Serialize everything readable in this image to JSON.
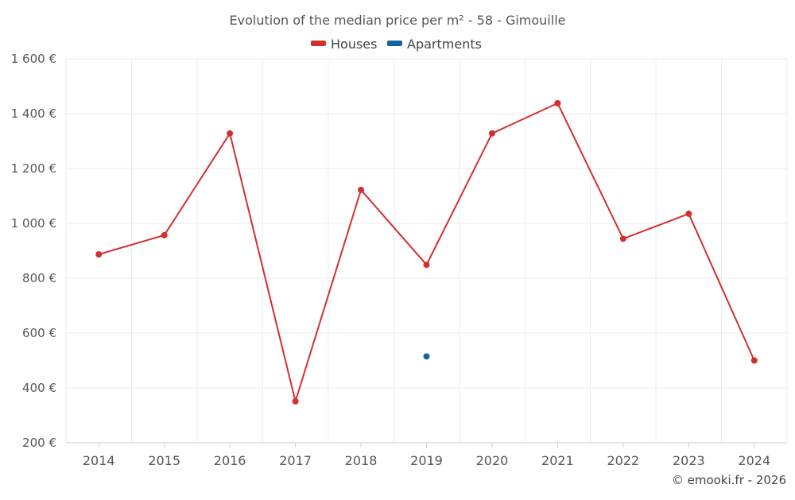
{
  "chart_data": {
    "type": "line",
    "title": "Evolution of the median price per m² - 58 - Gimouille",
    "categories": [
      "2014",
      "2015",
      "2016",
      "2017",
      "2018",
      "2019",
      "2020",
      "2021",
      "2022",
      "2023",
      "2024"
    ],
    "series": [
      {
        "name": "Houses",
        "color": "#d32f2f",
        "values": [
          887,
          957,
          1328,
          351,
          1122,
          849,
          1328,
          1438,
          944,
          1035,
          500
        ]
      },
      {
        "name": "Apartments",
        "color": "#1565a0",
        "values": [
          null,
          null,
          null,
          null,
          null,
          515,
          null,
          null,
          null,
          null,
          null
        ]
      }
    ],
    "ylim": [
      200,
      1600
    ],
    "yticks": [
      200,
      400,
      600,
      800,
      1000,
      1200,
      1400,
      1600
    ],
    "ytick_labels": [
      "200 €",
      "400 €",
      "600 €",
      "800 €",
      "1 000 €",
      "1 200 €",
      "1 400 €",
      "1 600 €"
    ],
    "grid": true,
    "legend_position": "top-center",
    "credit": "© emooki.fr - 2026"
  }
}
